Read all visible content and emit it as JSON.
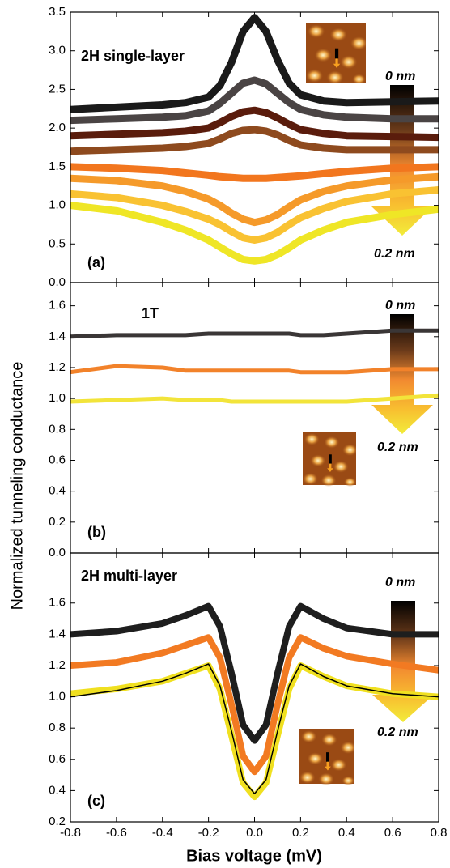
{
  "figure": {
    "ylabel": "Normalized tunneling conductance",
    "xlabel": "Bias voltage (mV)"
  },
  "chart_data": [
    {
      "type": "line",
      "annotations": [
        "2H single-layer",
        "(a)",
        "0 nm",
        "0.2 nm"
      ],
      "x": [
        -0.8,
        -0.6,
        -0.4,
        -0.3,
        -0.2,
        -0.15,
        -0.1,
        -0.05,
        0,
        0.05,
        0.1,
        0.15,
        0.2,
        0.3,
        0.4,
        0.6,
        0.8
      ],
      "xlim": [
        -0.8,
        0.8
      ],
      "ylim": [
        0,
        3.5
      ],
      "yticks": [
        {
          "value": 0,
          "label": "0.0"
        },
        0.5,
        {
          "value": 1,
          "label": "1.0"
        },
        1.5,
        {
          "value": 2,
          "label": "2.0"
        },
        2.5,
        {
          "value": 3,
          "label": "3.0"
        },
        3.5
      ],
      "series": [
        {
          "color": "#1a1a1a",
          "values": [
            2.24,
            2.27,
            2.3,
            2.33,
            2.4,
            2.55,
            2.85,
            3.25,
            3.43,
            3.25,
            2.88,
            2.58,
            2.43,
            2.35,
            2.33,
            2.34,
            2.35
          ]
        },
        {
          "color": "#4a4444",
          "values": [
            2.1,
            2.12,
            2.14,
            2.16,
            2.22,
            2.32,
            2.45,
            2.58,
            2.62,
            2.57,
            2.45,
            2.33,
            2.24,
            2.17,
            2.14,
            2.12,
            2.12
          ]
        },
        {
          "color": "#5a1c0c",
          "values": [
            1.9,
            1.92,
            1.94,
            1.96,
            2.0,
            2.07,
            2.15,
            2.21,
            2.23,
            2.2,
            2.13,
            2.05,
            1.98,
            1.93,
            1.9,
            1.89,
            1.88
          ]
        },
        {
          "color": "#8e4a1e",
          "values": [
            1.7,
            1.72,
            1.74,
            1.76,
            1.8,
            1.86,
            1.93,
            1.97,
            1.98,
            1.96,
            1.91,
            1.84,
            1.78,
            1.74,
            1.72,
            1.72,
            1.72
          ]
        },
        {
          "color": "#f2761e",
          "values": [
            1.5,
            1.48,
            1.45,
            1.42,
            1.39,
            1.37,
            1.36,
            1.35,
            1.35,
            1.35,
            1.36,
            1.37,
            1.38,
            1.41,
            1.44,
            1.48,
            1.5
          ]
        },
        {
          "color": "#f59a2a",
          "values": [
            1.35,
            1.32,
            1.25,
            1.18,
            1.08,
            1.0,
            0.9,
            0.82,
            0.78,
            0.81,
            0.88,
            0.98,
            1.07,
            1.18,
            1.25,
            1.33,
            1.37
          ]
        },
        {
          "color": "#f9c232",
          "values": [
            1.15,
            1.1,
            1.0,
            0.92,
            0.82,
            0.75,
            0.66,
            0.58,
            0.55,
            0.58,
            0.65,
            0.75,
            0.84,
            0.96,
            1.05,
            1.15,
            1.2
          ]
        },
        {
          "color": "#efe626",
          "values": [
            1.0,
            0.93,
            0.78,
            0.68,
            0.55,
            0.46,
            0.37,
            0.3,
            0.28,
            0.3,
            0.36,
            0.45,
            0.55,
            0.68,
            0.78,
            0.88,
            0.95
          ]
        }
      ]
    },
    {
      "type": "line",
      "annotations": [
        "1T",
        "(b)",
        "0 nm",
        "0.2 nm"
      ],
      "x": [
        -0.8,
        -0.6,
        -0.4,
        -0.3,
        -0.2,
        -0.15,
        -0.1,
        -0.05,
        0,
        0.05,
        0.1,
        0.15,
        0.2,
        0.3,
        0.4,
        0.6,
        0.8
      ],
      "xlim": [
        -0.8,
        0.8
      ],
      "ylim": [
        0,
        1.75
      ],
      "yticks": [
        {
          "value": 0,
          "label": "0.0"
        },
        0.2,
        0.4,
        0.6,
        0.8,
        {
          "value": 1,
          "label": "1.0"
        },
        1.2,
        1.4,
        1.6
      ],
      "series": [
        {
          "color": "#3a3636",
          "values": [
            1.4,
            1.41,
            1.41,
            1.41,
            1.42,
            1.42,
            1.42,
            1.42,
            1.42,
            1.42,
            1.42,
            1.42,
            1.41,
            1.41,
            1.42,
            1.44,
            1.44
          ]
        },
        {
          "color": "#f2822a",
          "values": [
            1.17,
            1.21,
            1.2,
            1.18,
            1.18,
            1.18,
            1.18,
            1.18,
            1.18,
            1.18,
            1.18,
            1.18,
            1.17,
            1.17,
            1.17,
            1.19,
            1.19
          ]
        },
        {
          "color": "#f2e43a",
          "values": [
            0.98,
            0.99,
            1.0,
            0.99,
            0.99,
            0.99,
            0.98,
            0.98,
            0.98,
            0.98,
            0.98,
            0.98,
            0.98,
            0.98,
            0.98,
            1.0,
            1.02
          ]
        }
      ]
    },
    {
      "type": "line",
      "annotations": [
        "2H multi-layer",
        "(c)",
        "0 nm",
        "0.2 nm"
      ],
      "x": [
        -0.8,
        -0.6,
        -0.4,
        -0.3,
        -0.2,
        -0.15,
        -0.1,
        -0.05,
        0,
        0.05,
        0.1,
        0.15,
        0.2,
        0.3,
        0.4,
        0.6,
        0.8
      ],
      "xlim": [
        -0.8,
        0.8
      ],
      "ylim": [
        0.2,
        1.92
      ],
      "yticks": [
        0.2,
        0.4,
        0.6,
        0.8,
        {
          "value": 1,
          "label": "1.0"
        },
        1.2,
        1.4,
        1.6
      ],
      "xticks": [
        -0.8,
        -0.6,
        -0.4,
        -0.2,
        {
          "value": 0,
          "label": "0.0"
        },
        0.2,
        0.4,
        0.6,
        0.8
      ],
      "series": [
        {
          "color": "#1e1e1e",
          "values": [
            1.4,
            1.42,
            1.47,
            1.52,
            1.58,
            1.45,
            1.15,
            0.82,
            0.72,
            0.82,
            1.15,
            1.45,
            1.58,
            1.5,
            1.44,
            1.4,
            1.4
          ]
        },
        {
          "color": "#f27a22",
          "values": [
            1.2,
            1.22,
            1.28,
            1.33,
            1.38,
            1.25,
            0.95,
            0.62,
            0.52,
            0.62,
            0.95,
            1.25,
            1.38,
            1.31,
            1.26,
            1.21,
            1.17
          ]
        },
        {
          "color": "#f0e020",
          "values": [
            1.02,
            1.05,
            1.1,
            1.15,
            1.2,
            1.05,
            0.75,
            0.45,
            0.36,
            0.45,
            0.75,
            1.05,
            1.2,
            1.13,
            1.07,
            1.02,
            1.0
          ]
        },
        {
          "color": "#000000",
          "values": [
            1.0,
            1.04,
            1.1,
            1.15,
            1.21,
            1.07,
            0.78,
            0.47,
            0.38,
            0.47,
            0.78,
            1.07,
            1.21,
            1.13,
            1.07,
            1.02,
            1.0
          ]
        }
      ]
    }
  ]
}
